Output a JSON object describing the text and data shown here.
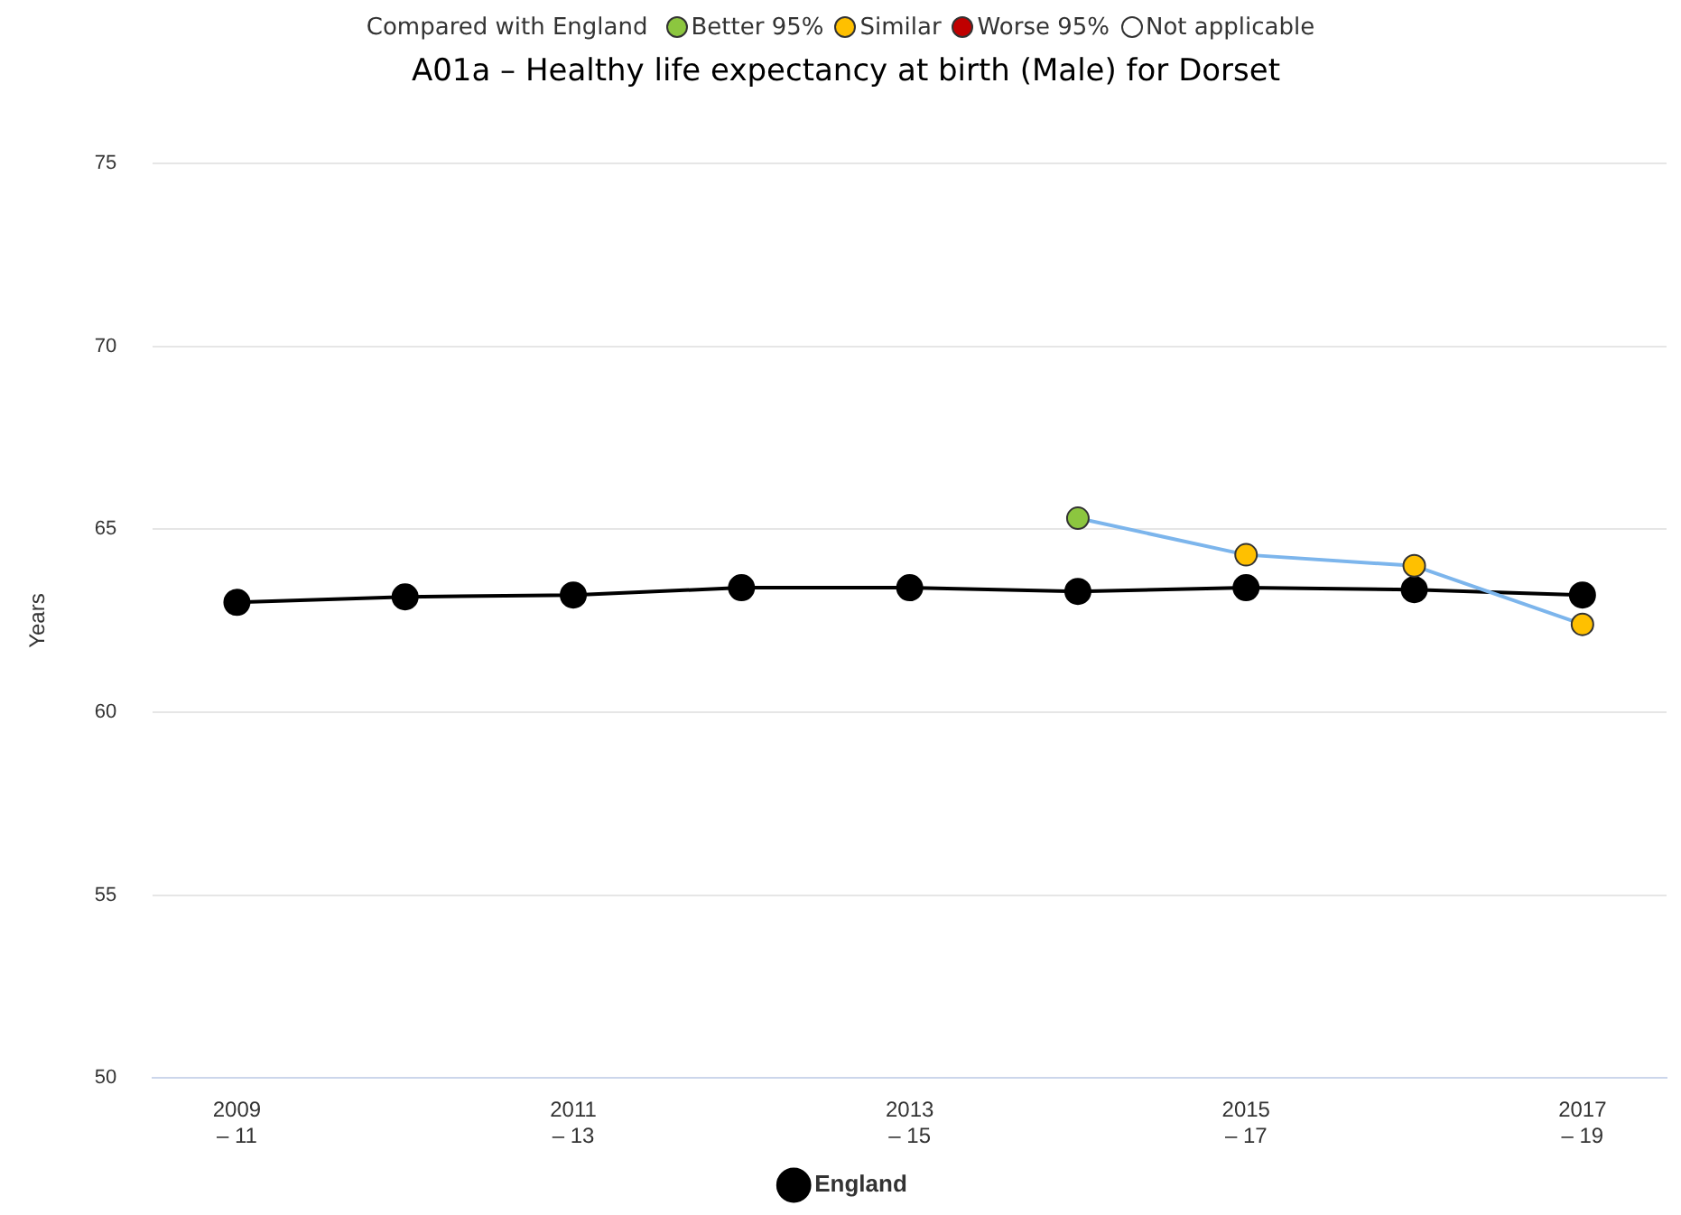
{
  "chart_data": {
    "type": "line",
    "title": "A01a – Healthy life expectancy at birth (Male) for Dorset",
    "ylabel": "Years",
    "annotations": [
      "Compared with England",
      "Better 95%",
      "Similar",
      "Worse 95%",
      "Not applicable"
    ],
    "categories": [
      "2009\n– 11",
      null,
      "2011\n– 13",
      null,
      "2013\n– 15",
      null,
      "2015\n– 17",
      null,
      "2017\n– 19"
    ],
    "series": [
      {
        "color": "#7cb5ec",
        "colors": [
          null,
          null,
          null,
          null,
          null,
          "#8cc63f",
          "#ffc000",
          "#ffc000",
          "#ffc000"
        ],
        "values": [
          null,
          null,
          null,
          null,
          null,
          65.3,
          64.3,
          64.0,
          62.4
        ]
      },
      {
        "name": "England",
        "color": "#000000",
        "values": [
          63.0,
          63.15,
          63.2,
          63.4,
          63.4,
          63.3,
          63.4,
          63.35,
          63.2
        ]
      }
    ],
    "ylim": [
      50,
      75
    ],
    "yticks": [
      50,
      55,
      60,
      65,
      70,
      75
    ],
    "grid": "y",
    "legend": "bottom",
    "marker": "circle",
    "line_style": "solid"
  }
}
